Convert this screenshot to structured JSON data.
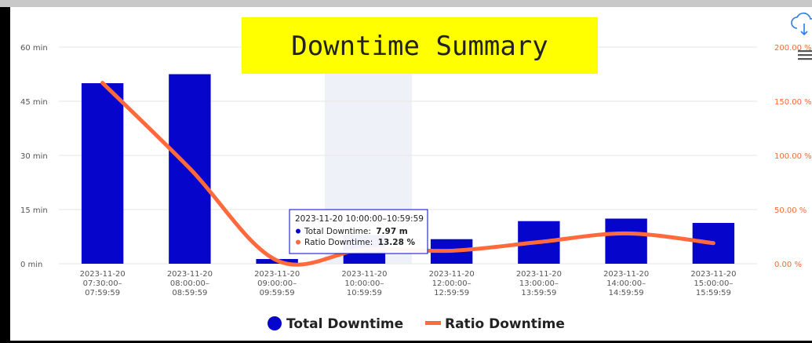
{
  "chart_data": {
    "type": "bar",
    "title": "Downtime Summary",
    "categories": [
      "2023-11-20 07:30:00–07:59:59",
      "2023-11-20 08:00:00–08:59:59",
      "2023-11-20 09:00:00–09:59:59",
      "2023-11-20 10:00:00–10:59:59",
      "2023-11-20 12:00:00–12:59:59",
      "2023-11-20 13:00:00–13:59:59",
      "2023-11-20 14:00:00–14:59:59",
      "2023-11-20 15:00:00–15:59:59"
    ],
    "series": [
      {
        "name": "Total Downtime",
        "color": "#0505cc",
        "type": "bar",
        "values": [
          50,
          52.5,
          1.3,
          7.97,
          6.8,
          11.8,
          12.5,
          11.3
        ]
      },
      {
        "name": "Ratio Downtime",
        "color": "#ff6a3d",
        "type": "line",
        "axis": "y2",
        "values": [
          167,
          88,
          3,
          13.28,
          12,
          20,
          28,
          19
        ]
      }
    ],
    "ylim": [
      0,
      60
    ],
    "yticks": [
      {
        "value": 0,
        "label": "0 min"
      },
      {
        "value": 15,
        "label": "15 min"
      },
      {
        "value": 30,
        "label": "30 min"
      },
      {
        "value": 45,
        "label": "45 min"
      },
      {
        "value": 60,
        "label": "60 min"
      }
    ],
    "y2lim": [
      0,
      200
    ],
    "y2ticks": [
      {
        "value": 0,
        "label": "0.00 %"
      },
      {
        "value": 50,
        "label": "50.00 %"
      },
      {
        "value": 100,
        "label": "100.00 %"
      },
      {
        "value": 150,
        "label": "150.00 %"
      },
      {
        "value": 200,
        "label": "200.00 %"
      }
    ],
    "grid": true,
    "legend": "bottom",
    "tooltip": {
      "title": "2023-11-20 10:00:00–10:59:59",
      "items": [
        {
          "label": "Total Downtime: ",
          "value": "7.97 m"
        },
        {
          "label": "Ratio Downtime: ",
          "value": "13.28 %"
        }
      ]
    }
  }
}
